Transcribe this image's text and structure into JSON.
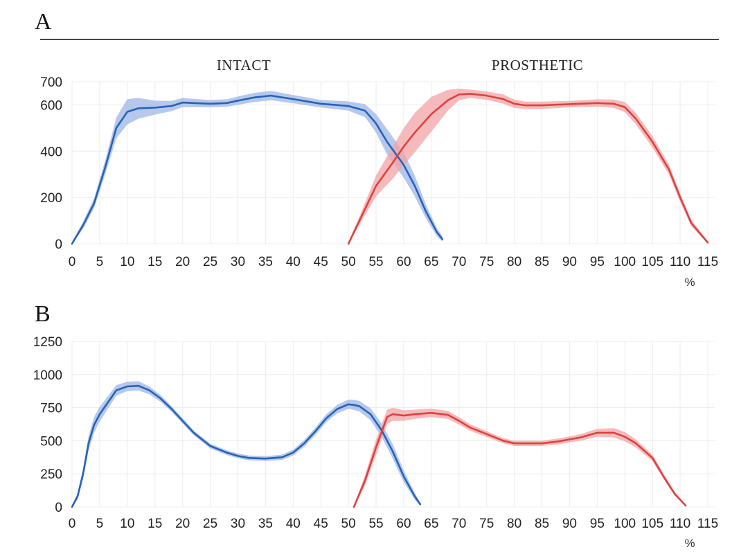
{
  "chart_data": [
    {
      "type": "line",
      "panel_label": "A",
      "group_labels": [
        "INTACT",
        "PROSTHETIC"
      ],
      "xlabel": "%",
      "ylabel": "",
      "xlim": [
        0,
        115
      ],
      "ylim": [
        0,
        700
      ],
      "xticks": [
        0,
        5,
        10,
        15,
        20,
        25,
        30,
        35,
        40,
        45,
        50,
        55,
        60,
        65,
        70,
        75,
        80,
        85,
        90,
        95,
        100,
        105,
        110,
        115
      ],
      "yticks": [
        0,
        200,
        400,
        600,
        700
      ],
      "grid": true,
      "series": [
        {
          "color": "#2563b8",
          "band_color": "#9db6e6",
          "x": [
            0,
            2,
            4,
            6,
            8,
            10,
            12,
            15,
            18,
            20,
            22,
            25,
            28,
            30,
            33,
            36,
            40,
            45,
            50,
            53,
            55,
            57,
            60,
            62,
            64,
            66,
            67
          ],
          "values": [
            0,
            80,
            175,
            330,
            500,
            570,
            585,
            588,
            595,
            610,
            608,
            605,
            608,
            618,
            632,
            640,
            625,
            605,
            595,
            575,
            520,
            440,
            340,
            250,
            140,
            50,
            20
          ],
          "band_width": [
            10,
            15,
            22,
            30,
            45,
            55,
            45,
            30,
            22,
            20,
            18,
            16,
            16,
            18,
            20,
            20,
            18,
            16,
            20,
            28,
            40,
            55,
            55,
            45,
            30,
            18,
            12
          ]
        },
        {
          "color": "#e0403e",
          "band_color": "#f2a4a6",
          "x": [
            50,
            52,
            55,
            58,
            60,
            62,
            65,
            68,
            70,
            72,
            75,
            78,
            80,
            82,
            85,
            90,
            95,
            98,
            100,
            102,
            105,
            108,
            110,
            112,
            115
          ],
          "values": [
            0,
            100,
            250,
            350,
            420,
            480,
            560,
            620,
            645,
            648,
            640,
            625,
            605,
            598,
            598,
            603,
            608,
            605,
            590,
            540,
            440,
            320,
            200,
            90,
            5
          ],
          "band_width": [
            8,
            18,
            45,
            70,
            80,
            85,
            75,
            45,
            25,
            18,
            18,
            20,
            18,
            16,
            16,
            14,
            16,
            18,
            22,
            25,
            25,
            22,
            18,
            14,
            6
          ]
        }
      ]
    },
    {
      "type": "line",
      "panel_label": "B",
      "xlabel": "%",
      "ylabel": "",
      "xlim": [
        0,
        115
      ],
      "ylim": [
        0,
        1250
      ],
      "xticks": [
        0,
        5,
        10,
        15,
        20,
        25,
        30,
        35,
        40,
        45,
        50,
        55,
        60,
        65,
        70,
        75,
        80,
        85,
        90,
        95,
        100,
        105,
        110,
        115
      ],
      "yticks": [
        0,
        250,
        500,
        750,
        1000,
        1250
      ],
      "grid": true,
      "series": [
        {
          "color": "#2563b8",
          "band_color": "#9db6e6",
          "x": [
            0,
            1,
            2,
            3,
            4,
            5,
            6,
            7,
            8,
            10,
            12,
            14,
            16,
            18,
            20,
            22,
            25,
            28,
            30,
            32,
            35,
            38,
            40,
            42,
            44,
            46,
            48,
            50,
            51,
            52,
            54,
            56,
            58,
            60,
            62,
            63
          ],
          "values": [
            0,
            80,
            250,
            480,
            620,
            700,
            760,
            820,
            880,
            910,
            915,
            880,
            820,
            740,
            650,
            560,
            460,
            410,
            385,
            370,
            365,
            375,
            410,
            480,
            570,
            670,
            740,
            775,
            770,
            760,
            700,
            580,
            420,
            230,
            80,
            20
          ],
          "band_width": [
            10,
            25,
            40,
            55,
            60,
            55,
            50,
            45,
            40,
            35,
            35,
            30,
            25,
            22,
            20,
            18,
            18,
            18,
            18,
            18,
            18,
            20,
            22,
            25,
            28,
            30,
            32,
            35,
            38,
            40,
            45,
            50,
            55,
            45,
            25,
            12
          ]
        },
        {
          "color": "#e0403e",
          "band_color": "#f2a4a6",
          "x": [
            51,
            53,
            55,
            57,
            58,
            60,
            62,
            65,
            68,
            70,
            72,
            75,
            78,
            80,
            85,
            88,
            90,
            92,
            95,
            98,
            100,
            102,
            105,
            107,
            109,
            111
          ],
          "values": [
            0,
            200,
            450,
            680,
            700,
            690,
            700,
            710,
            695,
            650,
            600,
            550,
            500,
            480,
            480,
            495,
            510,
            525,
            560,
            560,
            530,
            480,
            370,
            230,
            100,
            10
          ],
          "band_width": [
            10,
            40,
            60,
            55,
            50,
            40,
            35,
            32,
            30,
            28,
            25,
            22,
            20,
            20,
            20,
            22,
            22,
            25,
            30,
            35,
            35,
            30,
            25,
            20,
            14,
            6
          ]
        }
      ]
    }
  ]
}
